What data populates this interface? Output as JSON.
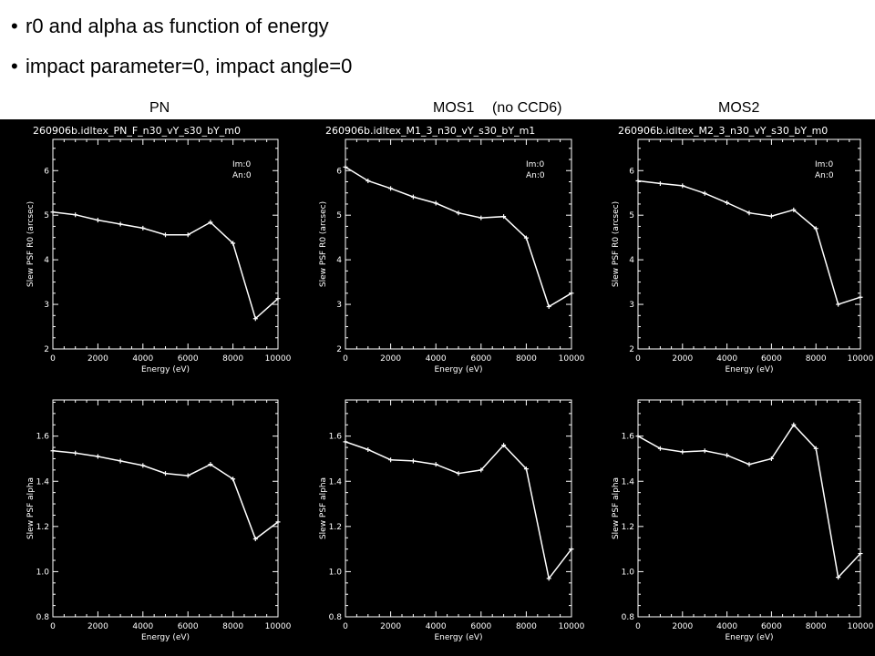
{
  "bullets": [
    "r0 and alpha as function of energy",
    "impact parameter=0, impact angle=0"
  ],
  "column_labels": [
    "PN",
    "MOS1",
    "(no CCD6)",
    "MOS2"
  ],
  "colors": {
    "panel_background": "#000000",
    "plot_foreground": "#ffffff"
  },
  "chart_data": [
    {
      "type": "line",
      "title": "260906b.idltex_PN_F_n30_vY_s30_bY_m0",
      "xlabel": "Energy (eV)",
      "ylabel": "Slew PSF R0 (arcsec)",
      "xlim": [
        0,
        10000
      ],
      "ylim": [
        2,
        6.7
      ],
      "xticks": [
        "0",
        "2000",
        "4000",
        "6000",
        "8000",
        "10000"
      ],
      "yticks": [
        "2",
        "3",
        "4",
        "5",
        "6"
      ],
      "annotations": [
        "Im:0",
        "An:0"
      ],
      "x": [
        0,
        1000,
        2000,
        3000,
        4000,
        5000,
        6000,
        7000,
        8000,
        9000,
        10000
      ],
      "values": [
        5.07,
        5.01,
        4.89,
        4.8,
        4.71,
        4.56,
        4.56,
        4.84,
        4.37,
        2.68,
        3.13
      ]
    },
    {
      "type": "line",
      "title": "260906b.idltex_M1_3_n30_vY_s30_bY_m1",
      "xlabel": "Energy (eV)",
      "ylabel": "Slew PSF R0 (arcsec)",
      "xlim": [
        0,
        10000
      ],
      "ylim": [
        2,
        6.7
      ],
      "xticks": [
        "0",
        "2000",
        "4000",
        "6000",
        "8000",
        "10000"
      ],
      "yticks": [
        "2",
        "3",
        "4",
        "5",
        "6"
      ],
      "annotations": [
        "Im:0",
        "An:0"
      ],
      "x": [
        0,
        1000,
        2000,
        3000,
        4000,
        5000,
        6000,
        7000,
        8000,
        9000,
        10000
      ],
      "values": [
        6.08,
        5.77,
        5.6,
        5.41,
        5.27,
        5.05,
        4.94,
        4.97,
        4.49,
        2.95,
        3.25
      ]
    },
    {
      "type": "line",
      "title": "260906b.idltex_M2_3_n30_vY_s30_bY_m0",
      "xlabel": "Energy (eV)",
      "ylabel": "Slew PSF R0 (arcsec)",
      "xlim": [
        0,
        10000
      ],
      "ylim": [
        2,
        6.7
      ],
      "xticks": [
        "0",
        "2000",
        "4000",
        "6000",
        "8000",
        "10000"
      ],
      "yticks": [
        "2",
        "3",
        "4",
        "5",
        "6"
      ],
      "annotations": [
        "Im:0",
        "An:0"
      ],
      "x": [
        0,
        1000,
        2000,
        3000,
        4000,
        5000,
        6000,
        7000,
        8000,
        9000,
        10000
      ],
      "values": [
        5.77,
        5.71,
        5.66,
        5.49,
        5.28,
        5.05,
        4.98,
        5.12,
        4.7,
        3.0,
        3.16
      ]
    },
    {
      "type": "line",
      "title": "",
      "xlabel": "Energy (eV)",
      "ylabel": "Slew PSF alpha",
      "xlim": [
        0,
        10000
      ],
      "ylim": [
        0.8,
        1.76
      ],
      "xticks": [
        "0",
        "2000",
        "4000",
        "6000",
        "8000",
        "10000"
      ],
      "yticks": [
        "0.8",
        "1.0",
        "1.2",
        "1.4",
        "1.6"
      ],
      "x": [
        0,
        1000,
        2000,
        3000,
        4000,
        5000,
        6000,
        7000,
        8000,
        9000,
        10000
      ],
      "values": [
        1.535,
        1.525,
        1.51,
        1.49,
        1.47,
        1.435,
        1.425,
        1.475,
        1.41,
        1.145,
        1.22
      ]
    },
    {
      "type": "line",
      "title": "",
      "xlabel": "Energy (eV)",
      "ylabel": "Slew PSF alpha",
      "xlim": [
        0,
        10000
      ],
      "ylim": [
        0.8,
        1.76
      ],
      "xticks": [
        "0",
        "2000",
        "4000",
        "6000",
        "8000",
        "10000"
      ],
      "yticks": [
        "0.8",
        "1.0",
        "1.2",
        "1.4",
        "1.6"
      ],
      "x": [
        0,
        1000,
        2000,
        3000,
        4000,
        5000,
        6000,
        7000,
        8000,
        9000,
        10000
      ],
      "values": [
        1.575,
        1.54,
        1.495,
        1.49,
        1.475,
        1.435,
        1.45,
        1.56,
        1.455,
        0.97,
        1.1
      ]
    },
    {
      "type": "line",
      "title": "",
      "xlabel": "Energy (eV)",
      "ylabel": "Slew PSF alpha",
      "xlim": [
        0,
        10000
      ],
      "ylim": [
        0.8,
        1.76
      ],
      "xticks": [
        "0",
        "2000",
        "4000",
        "6000",
        "8000",
        "10000"
      ],
      "yticks": [
        "0.8",
        "1.0",
        "1.2",
        "1.4",
        "1.6"
      ],
      "x": [
        0,
        1000,
        2000,
        3000,
        4000,
        5000,
        6000,
        7000,
        8000,
        9000,
        10000
      ],
      "values": [
        1.6,
        1.545,
        1.53,
        1.535,
        1.515,
        1.475,
        1.5,
        1.65,
        1.545,
        0.975,
        1.08
      ]
    }
  ]
}
